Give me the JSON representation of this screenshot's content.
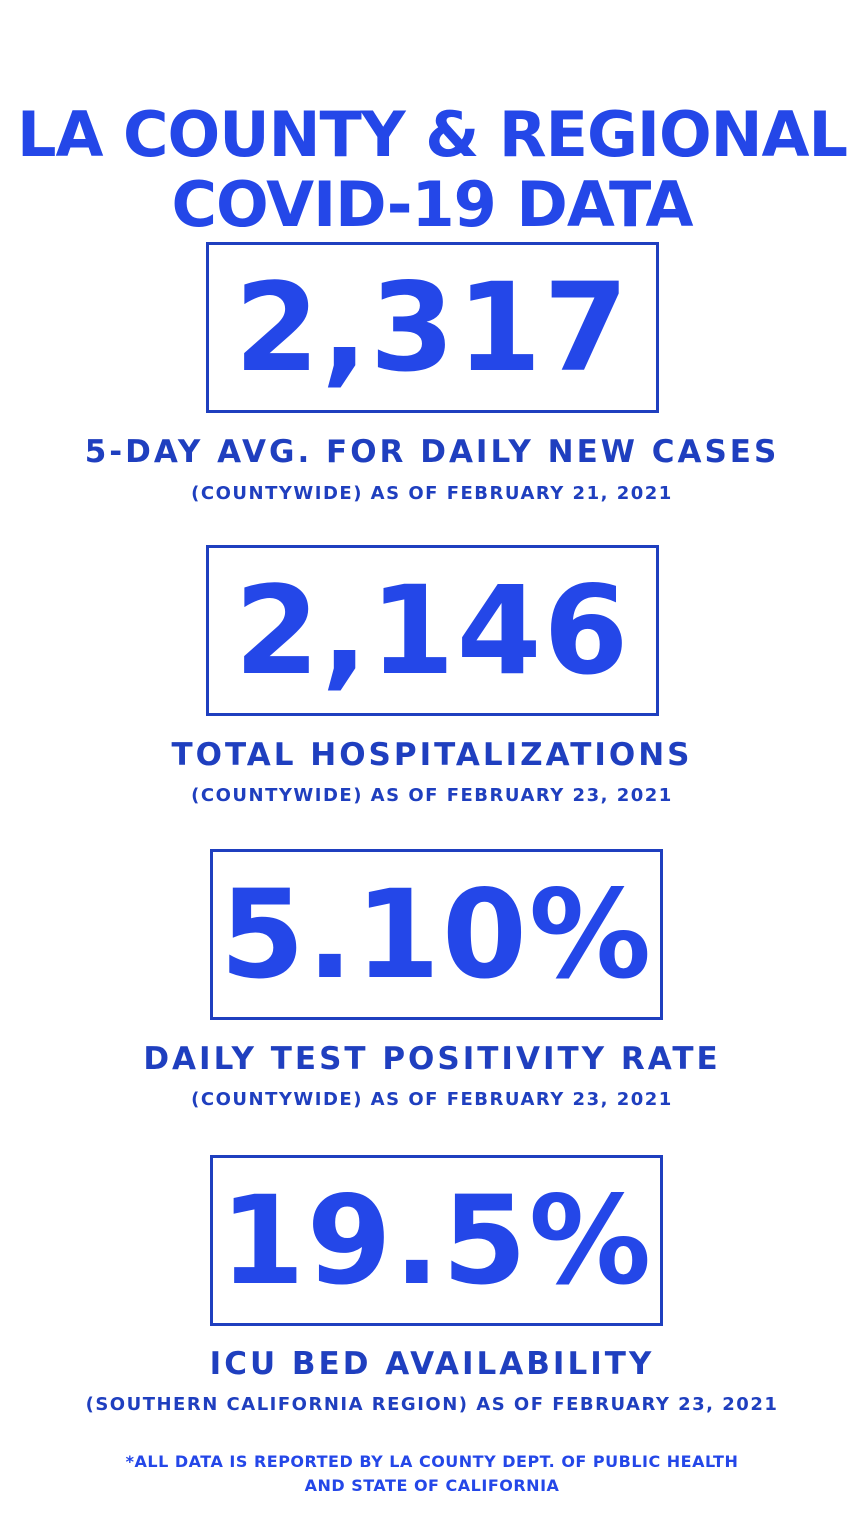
{
  "title": {
    "line1": "LA COUNTY & REGIONAL",
    "line2": "COVID-19 DATA"
  },
  "stats": [
    {
      "value": "2,317",
      "label": "5-DAY AVG. FOR DAILY NEW CASES",
      "sublabel": "(COUNTYWIDE) AS OF FEBRUARY 21, 2021"
    },
    {
      "value": "2,146",
      "label": "TOTAL HOSPITALIZATIONS",
      "sublabel": "(COUNTYWIDE) AS OF FEBRUARY 23, 2021"
    },
    {
      "value": "5.10%",
      "label": "DAILY TEST POSITIVITY RATE",
      "sublabel": "(COUNTYWIDE) AS OF FEBRUARY 23, 2021"
    },
    {
      "value": "19.5%",
      "label": "ICU BED AVAILABILITY",
      "sublabel": "(SOUTHERN CALIFORNIA REGION) AS OF FEBRUARY 23, 2021"
    }
  ],
  "footnote": {
    "line1": "*ALL DATA IS REPORTED BY LA COUNTY DEPT. OF PUBLIC HEALTH",
    "line2": "AND STATE OF CALIFORNIA"
  },
  "colors": {
    "accent": "#2447e8",
    "label": "#1f3fbf",
    "background": "#ffffff"
  }
}
